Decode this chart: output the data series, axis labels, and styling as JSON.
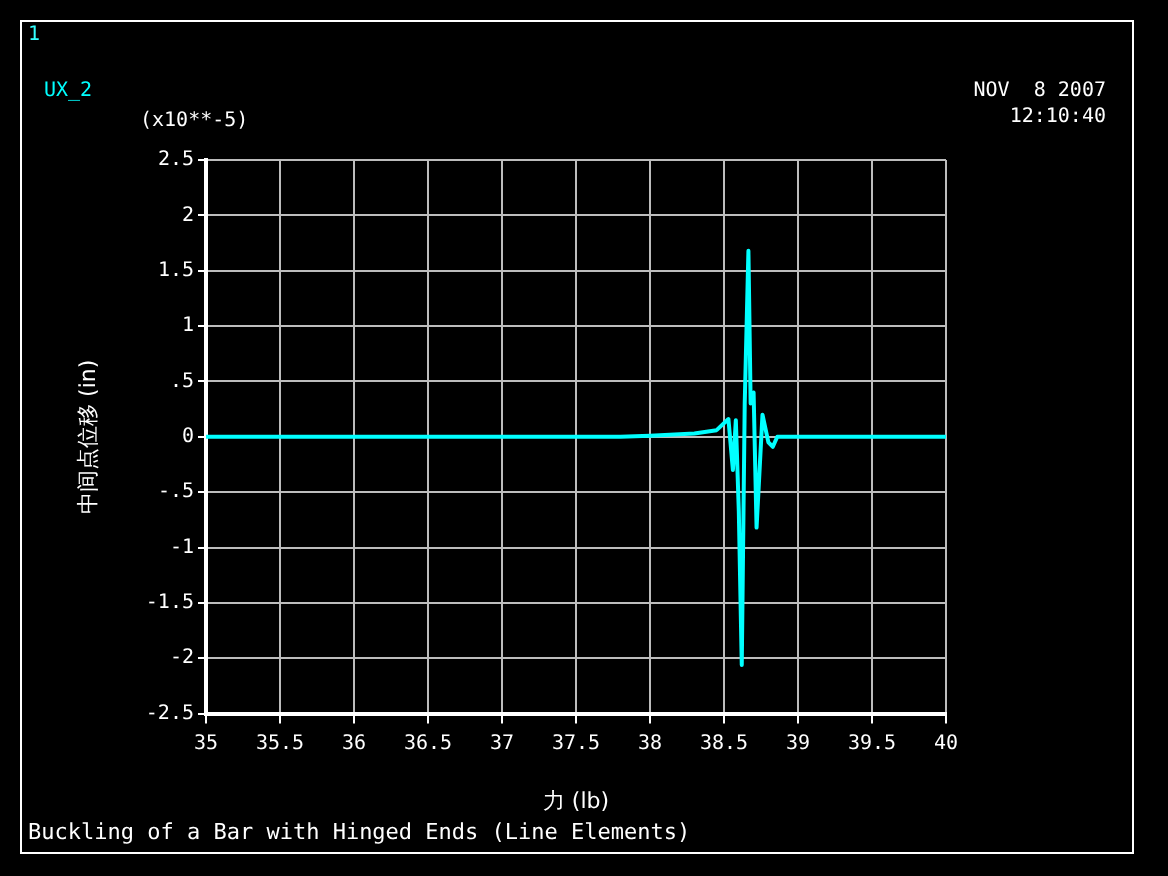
{
  "chart_data": {
    "type": "line",
    "title": "Buckling of a Bar with Hinged Ends (Line Elements)",
    "xlabel": "力 (lb)",
    "ylabel": "中间点位移 (in)",
    "annotations": [
      "1",
      "(x10**-5)",
      "NOV  8 2007",
      "12:10:40"
    ],
    "x": [
      35,
      37.8,
      38.0,
      38.3,
      38.45,
      38.53,
      38.56,
      38.58,
      38.6,
      38.62,
      38.64,
      38.665,
      38.68,
      38.7,
      38.72,
      38.76,
      38.8,
      38.83,
      38.86,
      38.9,
      40
    ],
    "series": [
      {
        "name": "UX_2",
        "color": "#00ffff",
        "values": [
          0,
          0,
          0.01,
          0.03,
          0.06,
          0.16,
          -0.3,
          0.15,
          -0.67,
          -2.06,
          0.3,
          1.68,
          0.3,
          0.4,
          -0.82,
          0.2,
          -0.05,
          -0.09,
          0,
          0,
          0
        ]
      }
    ],
    "xlim": [
      35,
      40
    ],
    "xticks": [
      35,
      35.5,
      36,
      36.5,
      37,
      37.5,
      38,
      38.5,
      39,
      39.5,
      40
    ],
    "ylim": [
      -2.5,
      2.5
    ],
    "yticks": [
      2.5,
      2,
      1.5,
      1,
      {
        "value": 0.5,
        "label": ".5"
      },
      0,
      {
        "value": -0.5,
        "label": "-.5"
      },
      -1,
      -1.5,
      -2,
      -2.5
    ],
    "grid": true,
    "legend": "top left"
  }
}
